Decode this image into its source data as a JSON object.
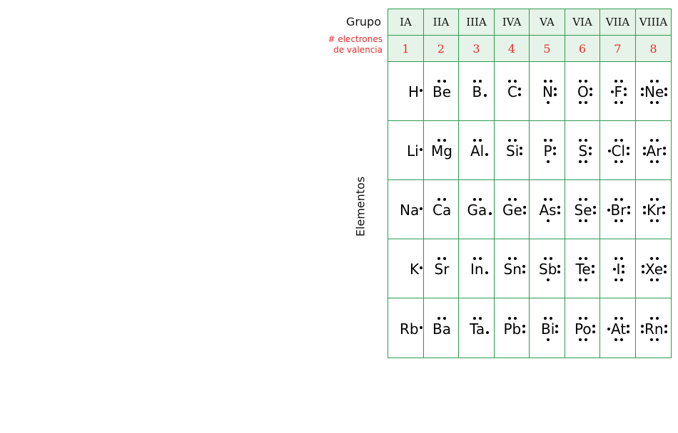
{
  "labels": {
    "group": "Grupo",
    "valence_line1": "# electrones",
    "valence_line2": "de valencia",
    "elements": "Elementos"
  },
  "groups": [
    "IA",
    "IIA",
    "IIIA",
    "IVA",
    "VA",
    "VIA",
    "VIIA",
    "VIIIA"
  ],
  "valence_electrons": [
    "1",
    "2",
    "3",
    "4",
    "5",
    "6",
    "7",
    "8"
  ],
  "rows": [
    [
      "H",
      "Be",
      "B",
      "C",
      "N",
      "O",
      "F",
      "Ne"
    ],
    [
      "Li",
      "Mg",
      "Al",
      "Si",
      "P",
      "S",
      "Cl",
      "Ar"
    ],
    [
      "Na",
      "Ca",
      "Ga",
      "Ge",
      "As",
      "Se",
      "Br",
      "Kr"
    ],
    [
      "K",
      "Sr",
      "In",
      "Sn",
      "Sb",
      "Te",
      "I",
      "Xe"
    ],
    [
      "Rb",
      "Ba",
      "Ta",
      "Pb",
      "Bi",
      "Po",
      "At",
      "Rn"
    ]
  ],
  "colors": {
    "grid": "#2e9a52",
    "header_fill": "#e6f3e8",
    "valence_text": "#e53030"
  }
}
